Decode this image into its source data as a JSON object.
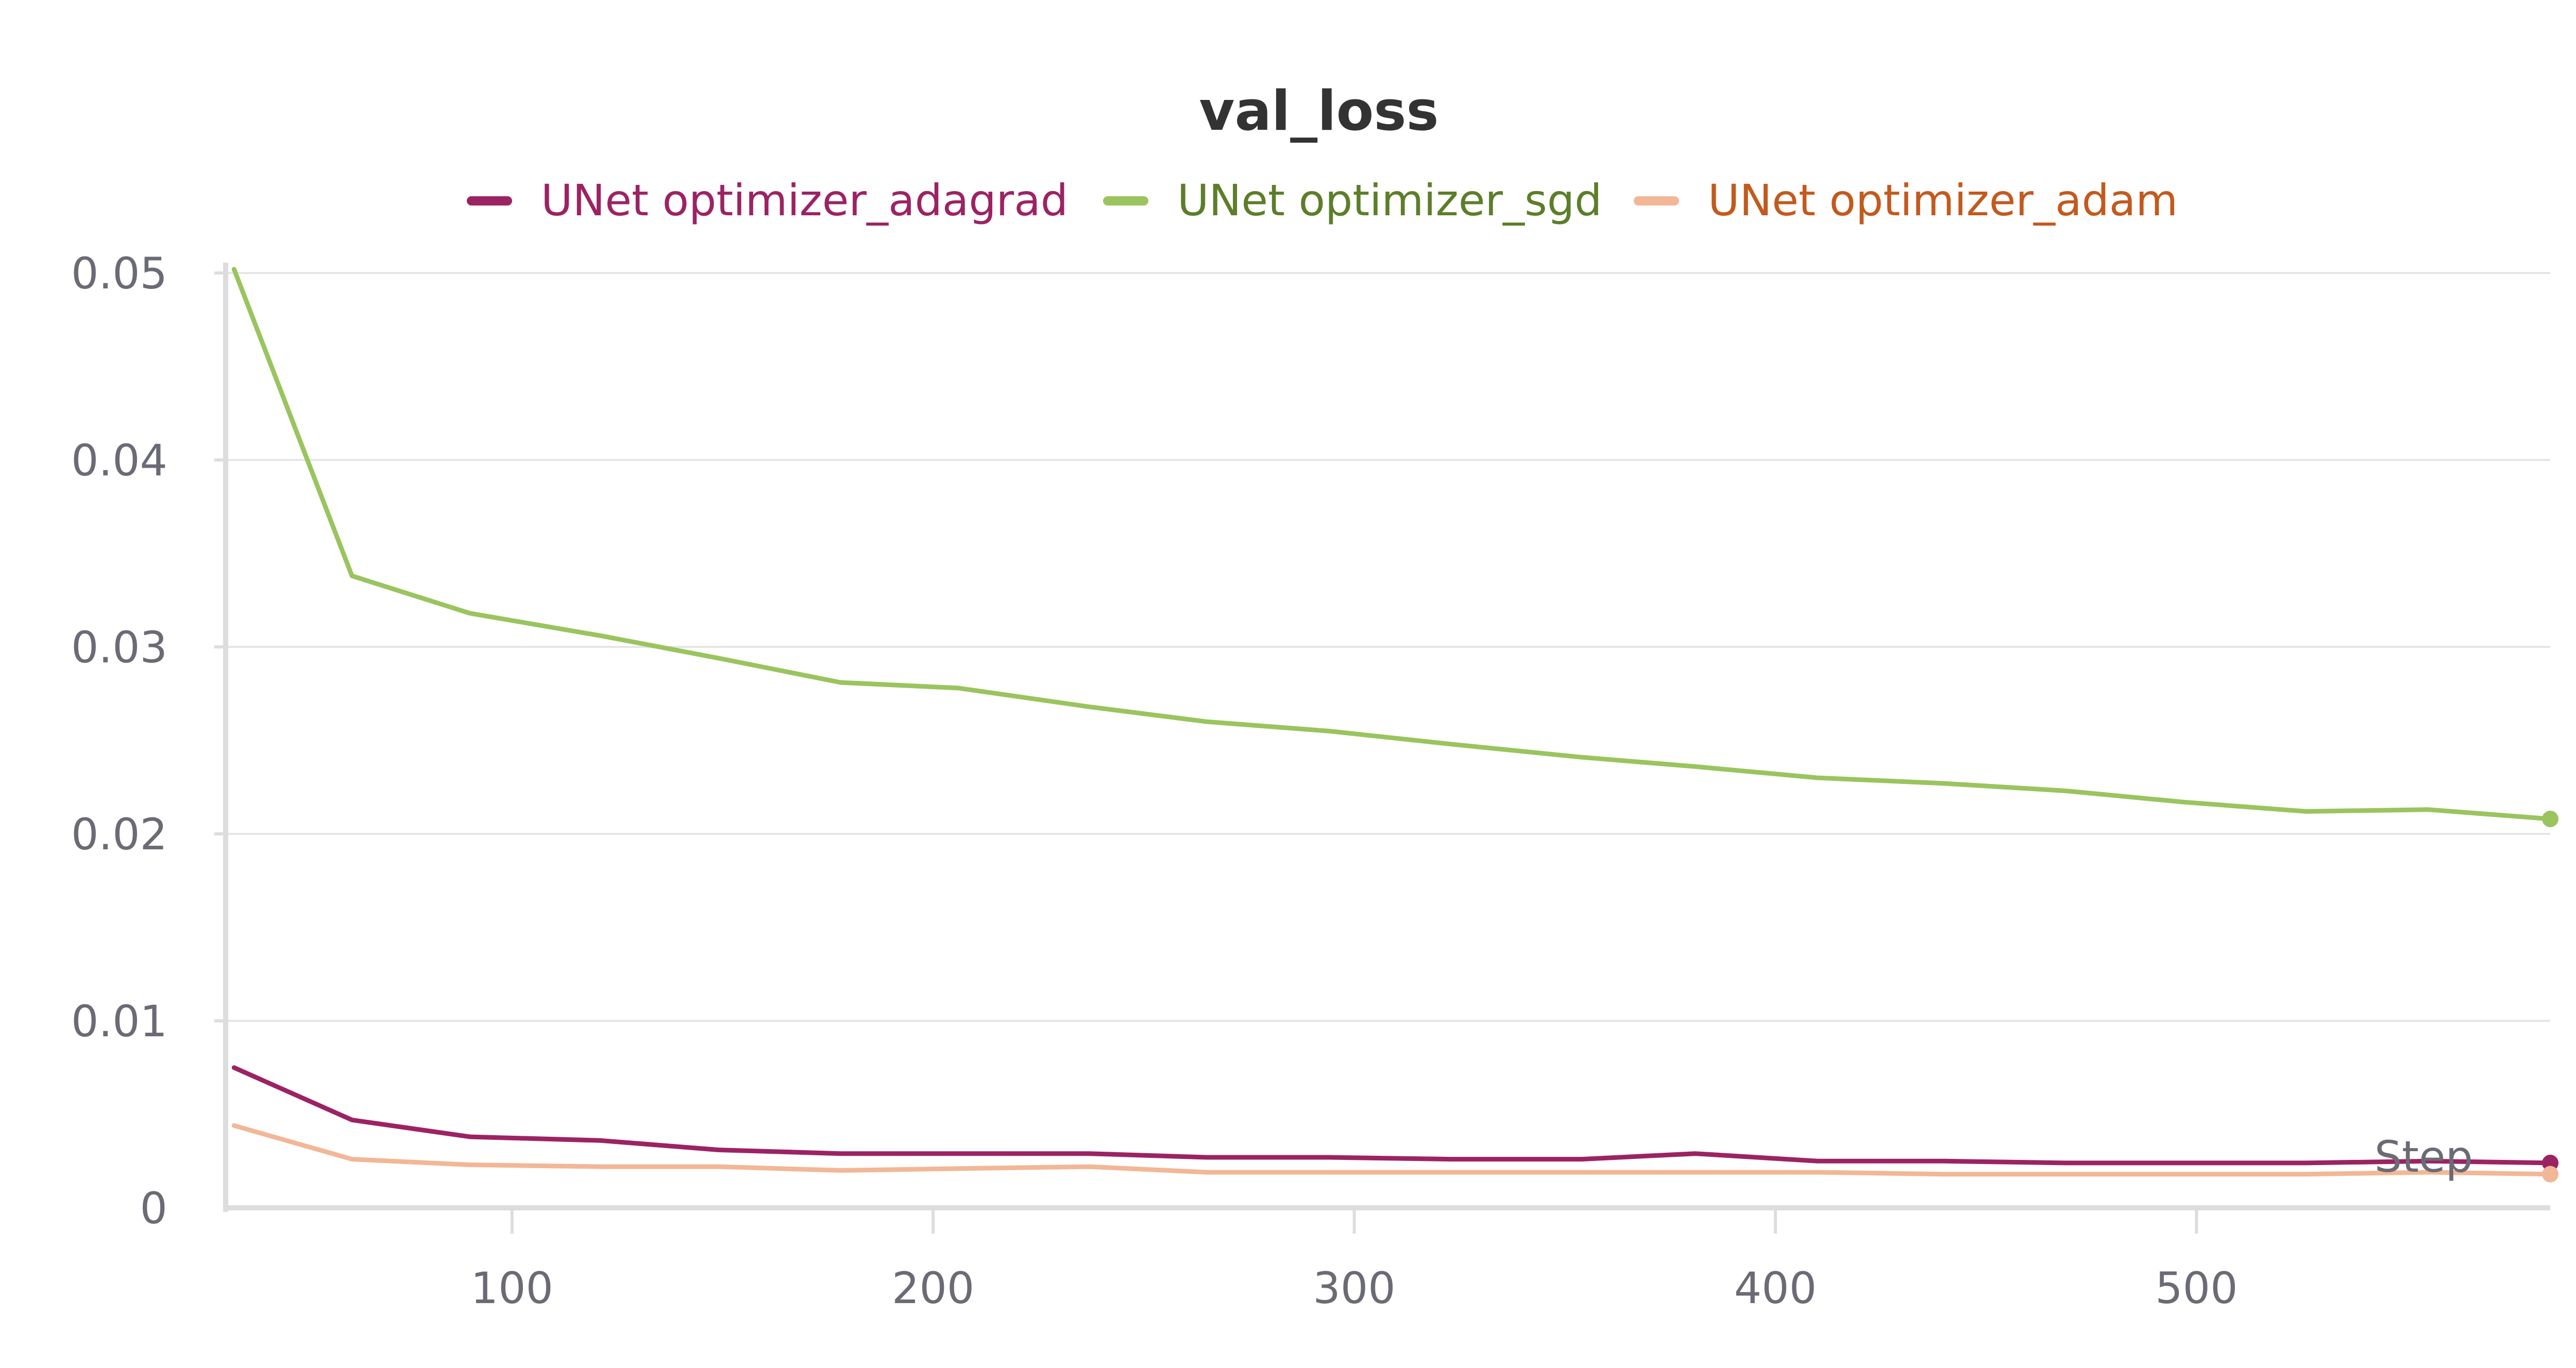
{
  "chart_data": {
    "type": "line",
    "title": "val_loss",
    "xlabel": "Step",
    "ylabel": "",
    "xlim": [
      32,
      584
    ],
    "ylim": [
      0,
      0.05
    ],
    "xticks": [
      100,
      200,
      300,
      400,
      500
    ],
    "xtick_labels": [
      "100",
      "200",
      "300",
      "400",
      "500"
    ],
    "yticks": [
      0,
      0.01,
      0.02,
      0.03,
      0.04,
      0.05
    ],
    "ytick_labels": [
      "0",
      "0.01",
      "0.02",
      "0.03",
      "0.04",
      "0.05"
    ],
    "grid": true,
    "legend_position": "top-center",
    "series": [
      {
        "name": "UNet optimizer_adagrad",
        "color": "#9c2363",
        "label_color": "#9c2363",
        "x": [
          34,
          62,
          90,
          121,
          149,
          178,
          206,
          237,
          265,
          294,
          323,
          354,
          381,
          410,
          440,
          469,
          497,
          526,
          555,
          584
        ],
        "y": [
          0.0075,
          0.0047,
          0.0038,
          0.0036,
          0.0031,
          0.0029,
          0.0029,
          0.0029,
          0.0027,
          0.0027,
          0.0026,
          0.0026,
          0.0029,
          0.0025,
          0.0025,
          0.0024,
          0.0024,
          0.0024,
          0.0025,
          0.0024
        ]
      },
      {
        "name": "UNet optimizer_sgd",
        "color": "#9ac45e",
        "label_color": "#5c7e2a",
        "x": [
          34,
          62,
          90,
          121,
          149,
          178,
          206,
          237,
          265,
          294,
          323,
          354,
          381,
          410,
          440,
          469,
          497,
          526,
          555,
          584
        ],
        "y": [
          0.0502,
          0.0338,
          0.0318,
          0.0306,
          0.0294,
          0.0281,
          0.0278,
          0.0268,
          0.026,
          0.0255,
          0.0248,
          0.0241,
          0.0236,
          0.023,
          0.0227,
          0.0223,
          0.0217,
          0.0212,
          0.0213,
          0.0208
        ]
      },
      {
        "name": "UNet optimizer_adam",
        "color": "#f2b796",
        "label_color": "#c25a1e",
        "x": [
          34,
          62,
          90,
          121,
          149,
          178,
          206,
          237,
          265,
          294,
          323,
          354,
          381,
          410,
          440,
          469,
          497,
          526,
          555,
          584
        ],
        "y": [
          0.0044,
          0.0026,
          0.0023,
          0.0022,
          0.0022,
          0.002,
          0.0021,
          0.0022,
          0.0019,
          0.0019,
          0.0019,
          0.0019,
          0.0019,
          0.0019,
          0.0018,
          0.0018,
          0.0018,
          0.0018,
          0.0019,
          0.0018
        ]
      }
    ]
  }
}
